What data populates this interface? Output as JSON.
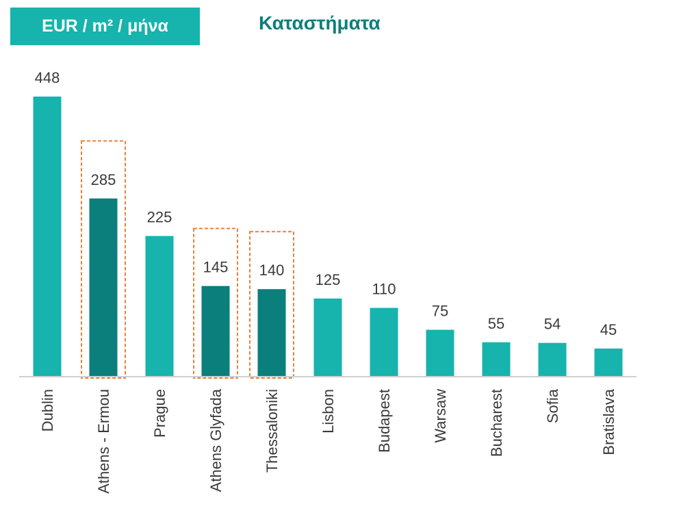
{
  "header": {
    "unit_label": "EUR / m² / μήνα",
    "title": "Καταστήματα"
  },
  "chart_data": {
    "type": "bar",
    "title": "Καταστήματα",
    "ylabel": "EUR / m² / μήνα",
    "xlabel": "",
    "ylim": [
      0,
      448
    ],
    "grid": false,
    "legend": "none",
    "categories": [
      "Dublin",
      "Athens - Ermou",
      "Prague",
      "Athens Glyfada",
      "Thessaloniki",
      "Lisbon",
      "Budapest",
      "Warsaw",
      "Bucharest",
      "Sofia",
      "Bratislava"
    ],
    "values": [
      448,
      285,
      225,
      145,
      140,
      125,
      110,
      75,
      55,
      54,
      45
    ],
    "highlighted": [
      false,
      true,
      false,
      true,
      true,
      false,
      false,
      false,
      false,
      false,
      false
    ],
    "colors": {
      "bar": "#17b3ad",
      "highlight_bar": "#0a7f7b",
      "highlight_box": "#e8823a",
      "axis": "#d0d0d0"
    }
  }
}
